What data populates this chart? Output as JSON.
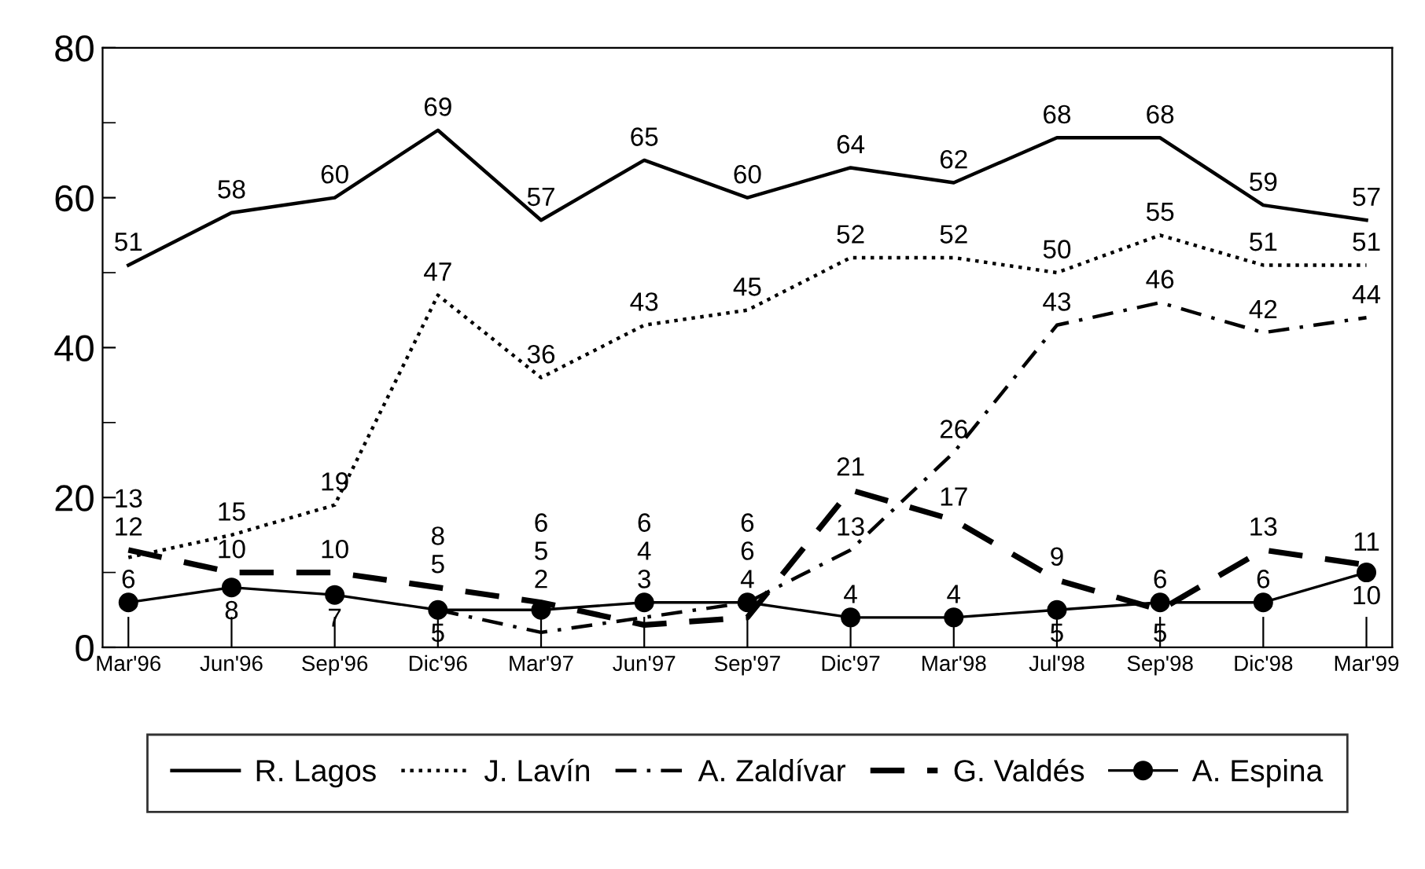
{
  "chart_data": {
    "type": "line",
    "categories": [
      "Mar'96",
      "Jun'96",
      "Sep'96",
      "Dic'96",
      "Mar'97",
      "Jun'97",
      "Sep'97",
      "Dic'97",
      "Mar'98",
      "Jul'98",
      "Sep'98",
      "Dic'98",
      "Mar'99"
    ],
    "series": [
      {
        "name": "R. Lagos",
        "color": "#000000",
        "line_style": "solid",
        "marker": "none",
        "values": [
          51,
          58,
          60,
          69,
          57,
          65,
          60,
          64,
          62,
          68,
          68,
          59,
          57
        ]
      },
      {
        "name": "J. Lavín",
        "color": "#000000",
        "line_style": "dotted",
        "marker": "none",
        "values": [
          12,
          15,
          19,
          47,
          36,
          43,
          45,
          52,
          52,
          50,
          55,
          51,
          51
        ]
      },
      {
        "name": "A. Zaldívar",
        "color": "#000000",
        "line_style": "dashdot",
        "marker": "none",
        "values": [
          null,
          null,
          null,
          5,
          2,
          4,
          6,
          13,
          26,
          43,
          46,
          42,
          44
        ]
      },
      {
        "name": "G. Valdés",
        "color": "#000000",
        "line_style": "dashed",
        "marker": "none",
        "values": [
          13,
          10,
          10,
          8,
          6,
          3,
          4,
          21,
          17,
          9,
          5,
          13,
          11
        ]
      },
      {
        "name": "A. Espina",
        "color": "#000000",
        "line_style": "solid",
        "marker": "circle",
        "values": [
          6,
          8,
          7,
          5,
          5,
          6,
          6,
          4,
          4,
          5,
          6,
          6,
          10
        ]
      }
    ],
    "ylim": [
      0,
      80
    ],
    "yticks": [
      0,
      20,
      40,
      60,
      80
    ],
    "data_labels": true,
    "grid": false,
    "legend": "bottom"
  }
}
